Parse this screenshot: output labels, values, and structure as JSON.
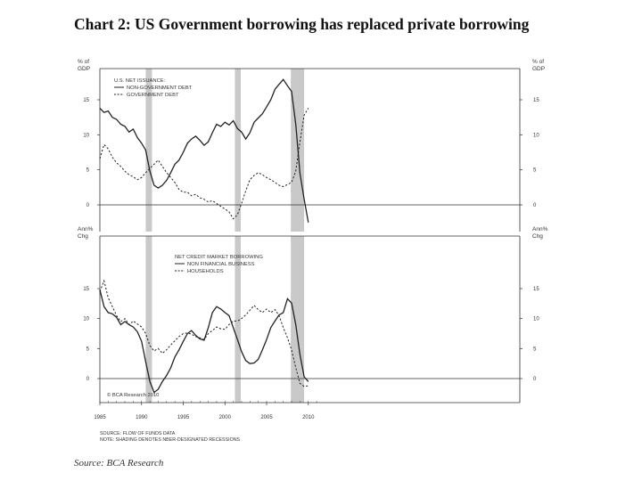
{
  "title": "Chart 2:  US Government borrowing has replaced private borrowing",
  "source": "Source: BCA Research",
  "chart_data": [
    {
      "type": "line",
      "panel": "top",
      "left_axis_label": [
        "% of",
        "GDP"
      ],
      "right_axis_label": [
        "% of",
        "GDP"
      ],
      "legend_title": "U.S. NET ISSUANCE:",
      "yticks": [
        "15",
        "10",
        "5",
        "0"
      ],
      "ylim": [
        -4,
        20
      ],
      "xlim": [
        1985,
        2011
      ],
      "recessions": [
        [
          1990.5,
          1991.25
        ],
        [
          2001.2,
          2001.9
        ],
        [
          2007.9,
          2009.5
        ]
      ],
      "series": [
        {
          "name": "NON-GOVERNMENT DEBT",
          "style": "solid",
          "points": [
            [
              1985,
              13.8
            ],
            [
              1985.5,
              13.2
            ],
            [
              1986,
              13.4
            ],
            [
              1986.5,
              12.5
            ],
            [
              1987,
              12.2
            ],
            [
              1987.5,
              11.5
            ],
            [
              1988,
              11.2
            ],
            [
              1988.5,
              10.4
            ],
            [
              1989,
              10.8
            ],
            [
              1989.5,
              9.6
            ],
            [
              1990,
              8.8
            ],
            [
              1990.5,
              7.8
            ],
            [
              1991,
              4.8
            ],
            [
              1991.5,
              2.8
            ],
            [
              1992,
              2.4
            ],
            [
              1992.5,
              2.8
            ],
            [
              1993,
              3.5
            ],
            [
              1993.5,
              4.6
            ],
            [
              1994,
              5.8
            ],
            [
              1994.5,
              6.4
            ],
            [
              1995,
              7.5
            ],
            [
              1995.5,
              8.8
            ],
            [
              1996,
              9.4
            ],
            [
              1996.5,
              9.8
            ],
            [
              1997,
              9.2
            ],
            [
              1997.5,
              8.5
            ],
            [
              1998,
              9.0
            ],
            [
              1998.5,
              10.3
            ],
            [
              1999,
              11.5
            ],
            [
              1999.5,
              11.2
            ],
            [
              2000,
              11.8
            ],
            [
              2000.5,
              11.4
            ],
            [
              2001,
              12.0
            ],
            [
              2001.5,
              10.9
            ],
            [
              2002,
              10.4
            ],
            [
              2002.5,
              9.4
            ],
            [
              2003,
              10.3
            ],
            [
              2003.5,
              11.8
            ],
            [
              2004,
              12.4
            ],
            [
              2004.5,
              13.0
            ],
            [
              2005,
              14.0
            ],
            [
              2005.5,
              15.0
            ],
            [
              2006,
              16.5
            ],
            [
              2006.5,
              17.2
            ],
            [
              2007,
              17.9
            ],
            [
              2007.5,
              17.0
            ],
            [
              2008,
              16.2
            ],
            [
              2008.5,
              11.5
            ],
            [
              2009,
              4.5
            ],
            [
              2009.5,
              0.8
            ],
            [
              2010,
              -2.5
            ]
          ]
        },
        {
          "name": "GOVERNMENT DEBT",
          "style": "dashed",
          "points": [
            [
              1985,
              6.6
            ],
            [
              1985.5,
              8.6
            ],
            [
              1986,
              8.0
            ],
            [
              1986.5,
              6.8
            ],
            [
              1987,
              6.0
            ],
            [
              1987.5,
              5.5
            ],
            [
              1988,
              4.8
            ],
            [
              1988.5,
              4.3
            ],
            [
              1989,
              4.0
            ],
            [
              1989.5,
              3.6
            ],
            [
              1990,
              3.9
            ],
            [
              1990.5,
              4.6
            ],
            [
              1991,
              5.2
            ],
            [
              1991.5,
              5.8
            ],
            [
              1992,
              6.4
            ],
            [
              1992.5,
              5.5
            ],
            [
              1993,
              4.6
            ],
            [
              1993.5,
              3.9
            ],
            [
              1994,
              3.2
            ],
            [
              1994.5,
              2.2
            ],
            [
              1995,
              1.8
            ],
            [
              1995.5,
              1.8
            ],
            [
              1996,
              1.3
            ],
            [
              1996.5,
              1.5
            ],
            [
              1997,
              1.0
            ],
            [
              1997.5,
              0.8
            ],
            [
              1998,
              0.4
            ],
            [
              1998.5,
              0.6
            ],
            [
              1999,
              0.2
            ],
            [
              1999.5,
              -0.2
            ],
            [
              2000,
              -0.6
            ],
            [
              2000.5,
              -1.0
            ],
            [
              2001,
              -2.0
            ],
            [
              2001.5,
              -1.4
            ],
            [
              2002,
              0.2
            ],
            [
              2002.5,
              2.0
            ],
            [
              2003,
              3.6
            ],
            [
              2003.5,
              4.2
            ],
            [
              2004,
              4.6
            ],
            [
              2004.5,
              4.3
            ],
            [
              2005,
              3.9
            ],
            [
              2005.5,
              3.6
            ],
            [
              2006,
              3.2
            ],
            [
              2006.5,
              2.8
            ],
            [
              2007,
              2.6
            ],
            [
              2007.5,
              2.9
            ],
            [
              2008,
              3.2
            ],
            [
              2008.5,
              4.8
            ],
            [
              2009,
              9.0
            ],
            [
              2009.5,
              12.8
            ],
            [
              2010,
              13.8
            ]
          ]
        }
      ]
    },
    {
      "type": "line",
      "panel": "bottom",
      "left_axis_label": [
        "Ann%",
        "Chg"
      ],
      "right_axis_label": [
        "Ann%",
        "Chg"
      ],
      "legend_title": "NET CREDIT MARKET BORROWING",
      "yticks": [
        "15",
        "10",
        "5",
        "0"
      ],
      "ylim": [
        -4,
        20
      ],
      "xlim": [
        1985,
        2011
      ],
      "xticks": [
        "1985",
        "1990",
        "1995",
        "2000",
        "2005",
        "2010"
      ],
      "recessions": [
        [
          1990.5,
          1991.25
        ],
        [
          2001.2,
          2001.9
        ],
        [
          2007.9,
          2009.5
        ]
      ],
      "annotation": "© BCA Research 2010",
      "series": [
        {
          "name": "NON FINANCIAL BUSINESS",
          "style": "solid",
          "points": [
            [
              1985,
              14.8
            ],
            [
              1985.5,
              12.0
            ],
            [
              1986,
              11.0
            ],
            [
              1986.5,
              10.8
            ],
            [
              1987,
              10.2
            ],
            [
              1987.5,
              9.0
            ],
            [
              1988,
              9.5
            ],
            [
              1988.5,
              9.0
            ],
            [
              1989,
              8.6
            ],
            [
              1989.5,
              7.8
            ],
            [
              1990,
              6.2
            ],
            [
              1990.5,
              2.8
            ],
            [
              1991,
              -0.5
            ],
            [
              1991.5,
              -2.3
            ],
            [
              1992,
              -1.8
            ],
            [
              1992.5,
              -0.5
            ],
            [
              1993,
              0.5
            ],
            [
              1993.5,
              1.8
            ],
            [
              1994,
              3.6
            ],
            [
              1994.5,
              4.8
            ],
            [
              1995,
              6.2
            ],
            [
              1995.5,
              7.5
            ],
            [
              1996,
              8.0
            ],
            [
              1996.5,
              7.2
            ],
            [
              1997,
              6.6
            ],
            [
              1997.5,
              6.4
            ],
            [
              1998,
              8.5
            ],
            [
              1998.5,
              11.0
            ],
            [
              1999,
              12.0
            ],
            [
              1999.5,
              11.6
            ],
            [
              2000,
              11.0
            ],
            [
              2000.5,
              10.5
            ],
            [
              2001,
              8.5
            ],
            [
              2001.5,
              6.5
            ],
            [
              2002,
              4.5
            ],
            [
              2002.5,
              3.0
            ],
            [
              2003,
              2.5
            ],
            [
              2003.5,
              2.6
            ],
            [
              2004,
              3.2
            ],
            [
              2004.5,
              4.8
            ],
            [
              2005,
              6.5
            ],
            [
              2005.5,
              8.5
            ],
            [
              2006,
              9.6
            ],
            [
              2006.5,
              10.6
            ],
            [
              2007,
              11.0
            ],
            [
              2007.5,
              13.3
            ],
            [
              2008,
              12.6
            ],
            [
              2008.5,
              9.0
            ],
            [
              2009,
              4.0
            ],
            [
              2009.5,
              0.3
            ],
            [
              2010,
              -0.5
            ]
          ]
        },
        {
          "name": "HOUSEHOLDS",
          "style": "dashed",
          "points": [
            [
              1985,
              14.5
            ],
            [
              1985.5,
              16.3
            ],
            [
              1986,
              13.5
            ],
            [
              1986.5,
              12.0
            ],
            [
              1987,
              10.5
            ],
            [
              1987.5,
              9.5
            ],
            [
              1988,
              10.0
            ],
            [
              1988.5,
              9.0
            ],
            [
              1989,
              9.6
            ],
            [
              1989.5,
              9.1
            ],
            [
              1990,
              8.6
            ],
            [
              1990.5,
              7.5
            ],
            [
              1991,
              5.5
            ],
            [
              1991.5,
              4.6
            ],
            [
              1992,
              5.0
            ],
            [
              1992.5,
              4.2
            ],
            [
              1993,
              4.8
            ],
            [
              1993.5,
              5.6
            ],
            [
              1994,
              6.3
            ],
            [
              1994.5,
              7.0
            ],
            [
              1995,
              7.5
            ],
            [
              1995.5,
              7.6
            ],
            [
              1996,
              7.4
            ],
            [
              1996.5,
              7.0
            ],
            [
              1997,
              6.8
            ],
            [
              1997.5,
              6.5
            ],
            [
              1998,
              7.5
            ],
            [
              1998.5,
              8.0
            ],
            [
              1999,
              8.6
            ],
            [
              1999.5,
              8.3
            ],
            [
              2000,
              8.2
            ],
            [
              2000.5,
              9.0
            ],
            [
              2001,
              9.6
            ],
            [
              2001.5,
              9.6
            ],
            [
              2002,
              10.0
            ],
            [
              2002.5,
              10.6
            ],
            [
              2003,
              11.4
            ],
            [
              2003.5,
              12.2
            ],
            [
              2004,
              11.5
            ],
            [
              2004.5,
              11.0
            ],
            [
              2005,
              11.6
            ],
            [
              2005.5,
              11.0
            ],
            [
              2006,
              11.5
            ],
            [
              2006.5,
              10.5
            ],
            [
              2007,
              8.5
            ],
            [
              2007.5,
              6.8
            ],
            [
              2008,
              4.8
            ],
            [
              2008.5,
              1.8
            ],
            [
              2009,
              -0.8
            ],
            [
              2009.5,
              -1.3
            ],
            [
              2010,
              -1.2
            ]
          ]
        }
      ]
    }
  ],
  "footnotes": [
    "SOURCE: FLOW OF FUNDS DATA",
    "NOTE: SHADING DENOTES NBER-DESIGNATED RECESSIONS"
  ]
}
